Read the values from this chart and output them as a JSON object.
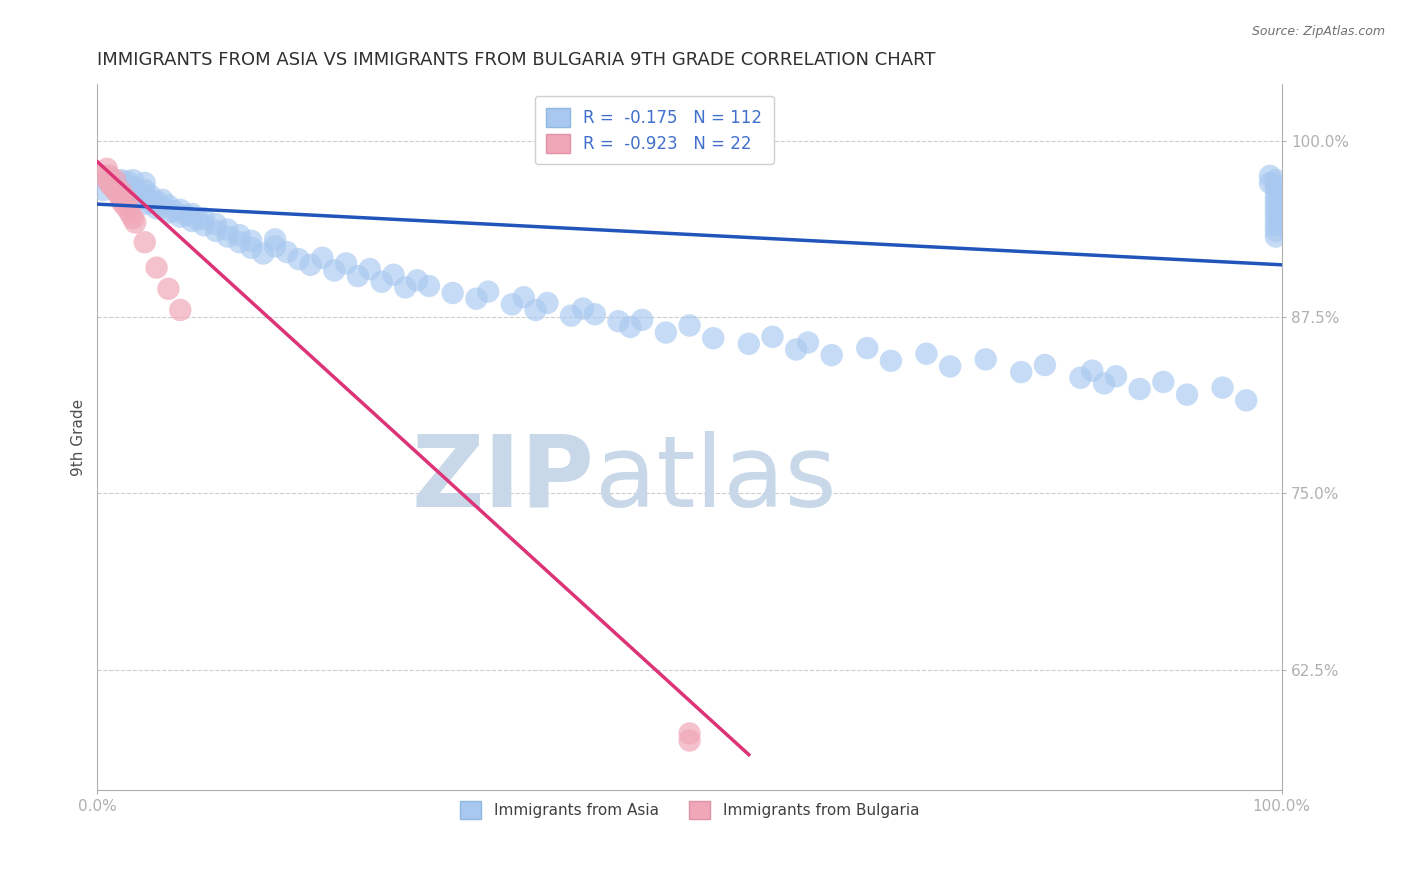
{
  "title": "IMMIGRANTS FROM ASIA VS IMMIGRANTS FROM BULGARIA 9TH GRADE CORRELATION CHART",
  "source_text": "Source: ZipAtlas.com",
  "ylabel": "9th Grade",
  "xlabel": "",
  "xlim": [
    0.0,
    1.0
  ],
  "ylim": [
    0.54,
    1.04
  ],
  "yticks": [
    0.625,
    0.75,
    0.875,
    1.0
  ],
  "ytick_labels": [
    "62.5%",
    "75.0%",
    "87.5%",
    "100.0%"
  ],
  "xticks": [
    0.0,
    1.0
  ],
  "xtick_labels": [
    "0.0%",
    "100.0%"
  ],
  "legend_r_asia": "-0.175",
  "legend_n_asia": "112",
  "legend_r_bulgaria": "-0.923",
  "legend_n_bulgaria": "22",
  "legend_label_asia": "Immigrants from Asia",
  "legend_label_bulgaria": "Immigrants from Bulgaria",
  "dot_color_asia": "#a8c8f0",
  "dot_color_bulgaria": "#f0a8b8",
  "line_color_asia": "#2255bb",
  "line_color_bulgaria": "#dd3377",
  "watermark_zip": "ZIP",
  "watermark_atlas": "atlas",
  "watermark_color_zip": "#c8d8e8",
  "watermark_color_atlas": "#c8d8e8",
  "background_color": "#ffffff",
  "title_fontsize": 13,
  "axis_label_fontsize": 11,
  "tick_label_fontsize": 11,
  "title_color": "#303030",
  "axis_label_color": "#505050",
  "tick_label_color": "#4070cc",
  "grid_color": "#c8c8c8",
  "asia_x": [
    0.005,
    0.01,
    0.01,
    0.015,
    0.015,
    0.02,
    0.02,
    0.02,
    0.025,
    0.025,
    0.025,
    0.03,
    0.03,
    0.03,
    0.03,
    0.035,
    0.035,
    0.04,
    0.04,
    0.04,
    0.04,
    0.045,
    0.045,
    0.05,
    0.05,
    0.055,
    0.055,
    0.06,
    0.06,
    0.065,
    0.07,
    0.07,
    0.075,
    0.08,
    0.08,
    0.085,
    0.09,
    0.09,
    0.1,
    0.1,
    0.11,
    0.11,
    0.12,
    0.12,
    0.13,
    0.13,
    0.14,
    0.15,
    0.15,
    0.16,
    0.17,
    0.18,
    0.19,
    0.2,
    0.21,
    0.22,
    0.23,
    0.24,
    0.25,
    0.26,
    0.27,
    0.28,
    0.3,
    0.32,
    0.33,
    0.35,
    0.36,
    0.37,
    0.38,
    0.4,
    0.41,
    0.42,
    0.44,
    0.45,
    0.46,
    0.48,
    0.5,
    0.52,
    0.55,
    0.57,
    0.59,
    0.6,
    0.62,
    0.65,
    0.67,
    0.7,
    0.72,
    0.75,
    0.78,
    0.8,
    0.83,
    0.84,
    0.85,
    0.86,
    0.88,
    0.9,
    0.92,
    0.95,
    0.97,
    0.99,
    0.99,
    0.995,
    0.995,
    0.995,
    0.995,
    0.995,
    0.995,
    0.995,
    0.995,
    0.995,
    0.995,
    0.995
  ],
  "asia_y": [
    0.965,
    0.97,
    0.975,
    0.965,
    0.97,
    0.96,
    0.968,
    0.972,
    0.962,
    0.967,
    0.971,
    0.958,
    0.963,
    0.967,
    0.972,
    0.959,
    0.964,
    0.955,
    0.96,
    0.965,
    0.97,
    0.956,
    0.961,
    0.952,
    0.957,
    0.953,
    0.958,
    0.949,
    0.954,
    0.95,
    0.946,
    0.951,
    0.947,
    0.943,
    0.948,
    0.944,
    0.94,
    0.945,
    0.936,
    0.941,
    0.932,
    0.937,
    0.928,
    0.933,
    0.924,
    0.929,
    0.92,
    0.925,
    0.93,
    0.921,
    0.916,
    0.912,
    0.917,
    0.908,
    0.913,
    0.904,
    0.909,
    0.9,
    0.905,
    0.896,
    0.901,
    0.897,
    0.892,
    0.888,
    0.893,
    0.884,
    0.889,
    0.88,
    0.885,
    0.876,
    0.881,
    0.877,
    0.872,
    0.868,
    0.873,
    0.864,
    0.869,
    0.86,
    0.856,
    0.861,
    0.852,
    0.857,
    0.848,
    0.853,
    0.844,
    0.849,
    0.84,
    0.845,
    0.836,
    0.841,
    0.832,
    0.837,
    0.828,
    0.833,
    0.824,
    0.829,
    0.82,
    0.825,
    0.816,
    0.97,
    0.975,
    0.972,
    0.968,
    0.965,
    0.96,
    0.956,
    0.952,
    0.948,
    0.944,
    0.94,
    0.936,
    0.932
  ],
  "bulgaria_x": [
    0.005,
    0.008,
    0.01,
    0.01,
    0.012,
    0.015,
    0.015,
    0.018,
    0.02,
    0.02,
    0.022,
    0.025,
    0.025,
    0.028,
    0.03,
    0.032,
    0.04,
    0.05,
    0.06,
    0.07,
    0.5,
    0.5
  ],
  "bulgaria_y": [
    0.975,
    0.98,
    0.97,
    0.975,
    0.968,
    0.965,
    0.972,
    0.962,
    0.958,
    0.964,
    0.955,
    0.952,
    0.958,
    0.948,
    0.945,
    0.942,
    0.928,
    0.91,
    0.895,
    0.88,
    0.575,
    0.58
  ],
  "blue_line_x0": 0.0,
  "blue_line_y0": 0.955,
  "blue_line_x1": 1.0,
  "blue_line_y1": 0.912,
  "pink_line_x0": 0.0,
  "pink_line_y0": 0.985,
  "pink_line_x1": 0.55,
  "pink_line_y1": 0.565
}
